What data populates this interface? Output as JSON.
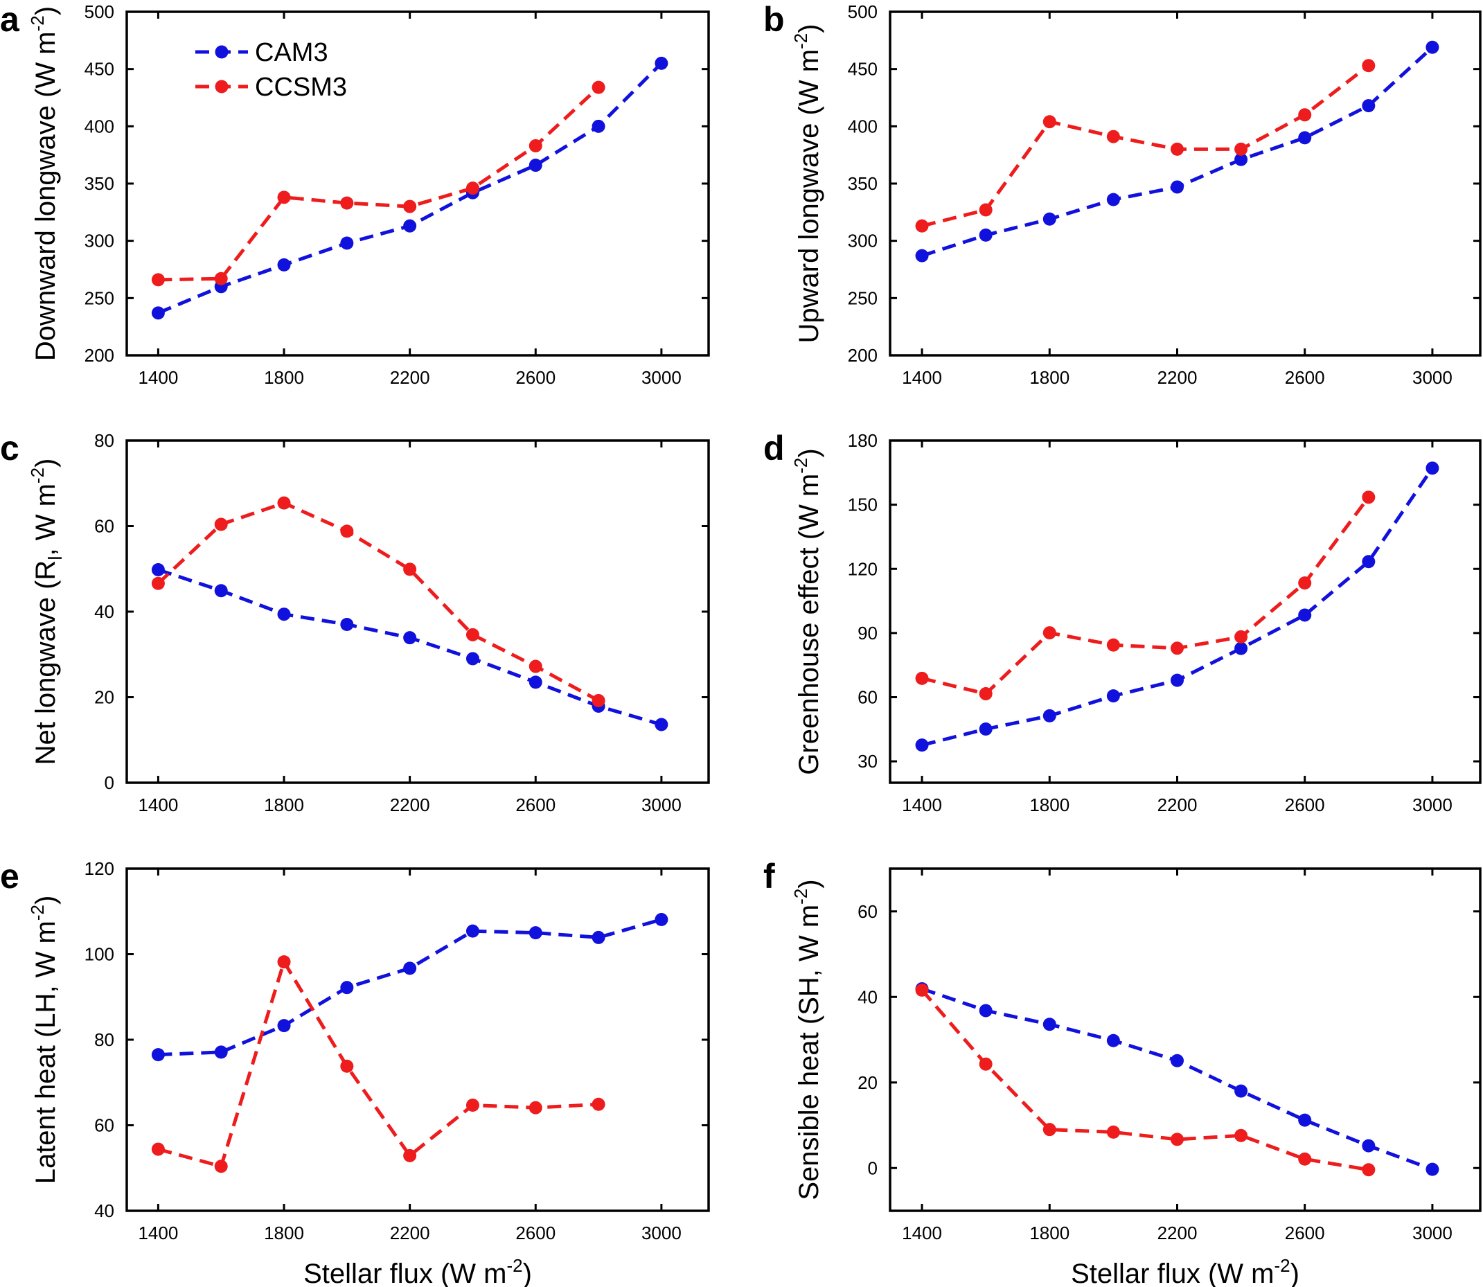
{
  "figure": {
    "colors": {
      "CAM3": "#1111dd",
      "CCSM3": "#ee1c1c"
    },
    "legend": [
      "CAM3",
      "CCSM3"
    ],
    "shared_x_label": "Stellar flux (W m",
    "superscript": "-2"
  },
  "chart_data": [
    {
      "type": "line",
      "panel": "a",
      "title": "",
      "xlabel": "",
      "ylabel": "Downward longwave (W m",
      "ylabel_sup": "-2",
      "ylabel_suffix": ")",
      "xlim": [
        1300,
        3150
      ],
      "ylim": [
        200,
        500
      ],
      "xticks": [
        1400,
        1800,
        2200,
        2600,
        3000
      ],
      "yticks": [
        200,
        250,
        300,
        350,
        400,
        450,
        500
      ],
      "series": [
        {
          "name": "CAM3",
          "x": [
            1400,
            1600,
            1800,
            2000,
            2200,
            2400,
            2600,
            2800,
            3000
          ],
          "y": [
            237,
            260,
            279,
            298,
            313,
            342,
            366,
            400,
            455
          ]
        },
        {
          "name": "CCSM3",
          "x": [
            1400,
            1600,
            1800,
            2000,
            2200,
            2400,
            2600,
            2800
          ],
          "y": [
            266,
            267,
            338,
            333,
            330,
            346,
            383,
            434
          ]
        }
      ]
    },
    {
      "type": "line",
      "panel": "b",
      "title": "",
      "xlabel": "",
      "ylabel": "Upward longwave (W m",
      "ylabel_sup": "-2",
      "ylabel_suffix": ")",
      "xlim": [
        1300,
        3150
      ],
      "ylim": [
        200,
        500
      ],
      "xticks": [
        1400,
        1800,
        2200,
        2600,
        3000
      ],
      "yticks": [
        200,
        250,
        300,
        350,
        400,
        450,
        500
      ],
      "series": [
        {
          "name": "CAM3",
          "x": [
            1400,
            1600,
            1800,
            2000,
            2200,
            2400,
            2600,
            2800,
            3000
          ],
          "y": [
            287,
            305,
            319,
            336,
            347,
            371,
            390,
            418,
            469
          ]
        },
        {
          "name": "CCSM3",
          "x": [
            1400,
            1600,
            1800,
            2000,
            2200,
            2400,
            2600,
            2800
          ],
          "y": [
            313,
            327,
            404,
            391,
            380,
            380,
            410,
            453
          ]
        }
      ]
    },
    {
      "type": "line",
      "panel": "c",
      "title": "",
      "xlabel": "",
      "ylabel": "Net longwave (R",
      "ylabel_sub": "l",
      "ylabel_suffix_mid": ", W m",
      "ylabel_sup": "-2",
      "ylabel_suffix": ")",
      "xlim": [
        1300,
        3150
      ],
      "ylim": [
        0,
        80
      ],
      "xticks": [
        1400,
        1800,
        2200,
        2600,
        3000
      ],
      "yticks": [
        0,
        20,
        40,
        60,
        80
      ],
      "series": [
        {
          "name": "CAM3",
          "x": [
            1400,
            1600,
            1800,
            2000,
            2200,
            2400,
            2600,
            2800,
            3000
          ],
          "y": [
            49.8,
            44.9,
            39.4,
            37.0,
            33.9,
            29.0,
            23.5,
            17.9,
            13.6
          ]
        },
        {
          "name": "CCSM3",
          "x": [
            1400,
            1600,
            1800,
            2000,
            2200,
            2400,
            2600,
            2800
          ],
          "y": [
            46.6,
            60.4,
            65.4,
            58.8,
            49.9,
            34.6,
            27.2,
            19.2
          ]
        }
      ]
    },
    {
      "type": "line",
      "panel": "d",
      "title": "",
      "xlabel": "",
      "ylabel": "Greenhouse effect (W m",
      "ylabel_sup": "-2",
      "ylabel_suffix": ")",
      "xlim": [
        1300,
        3150
      ],
      "ylim": [
        20,
        180
      ],
      "xticks": [
        1400,
        1800,
        2200,
        2600,
        3000
      ],
      "yticks": [
        30,
        60,
        90,
        120,
        150,
        180
      ],
      "series": [
        {
          "name": "CAM3",
          "x": [
            1400,
            1600,
            1800,
            2000,
            2200,
            2400,
            2600,
            2800,
            3000
          ],
          "y": [
            37.6,
            45.1,
            51.3,
            60.6,
            67.9,
            82.8,
            98.4,
            123.4,
            167.1
          ]
        },
        {
          "name": "CCSM3",
          "x": [
            1400,
            1600,
            1800,
            2000,
            2200,
            2400,
            2600,
            2800
          ],
          "y": [
            68.8,
            61.6,
            90.1,
            84.4,
            82.9,
            88.2,
            113.4,
            153.5
          ]
        }
      ]
    },
    {
      "type": "line",
      "panel": "e",
      "title": "",
      "xlabel": "Stellar flux (W m",
      "ylabel": "Latent heat (LH, W m",
      "ylabel_sup": "-2",
      "ylabel_suffix": ")",
      "xlim": [
        1300,
        3150
      ],
      "ylim": [
        40,
        120
      ],
      "xticks": [
        1400,
        1800,
        2200,
        2600,
        3000
      ],
      "yticks": [
        40,
        60,
        80,
        100,
        120
      ],
      "series": [
        {
          "name": "CAM3",
          "x": [
            1400,
            1600,
            1800,
            2000,
            2200,
            2400,
            2600,
            2800,
            3000
          ],
          "y": [
            76.5,
            77.1,
            83.3,
            92.2,
            96.7,
            105.4,
            105.0,
            103.9,
            108.1
          ]
        },
        {
          "name": "CCSM3",
          "x": [
            1400,
            1600,
            1800,
            2000,
            2200,
            2400,
            2600,
            2800
          ],
          "y": [
            54.4,
            50.4,
            98.2,
            73.8,
            52.9,
            64.7,
            64.1,
            64.9
          ]
        }
      ]
    },
    {
      "type": "line",
      "panel": "f",
      "title": "",
      "xlabel": "Stellar flux (W m",
      "ylabel": "Sensible heat (SH, W m",
      "ylabel_sup": "-2",
      "ylabel_suffix": ")",
      "xlim": [
        1300,
        3150
      ],
      "ylim": [
        -10,
        70
      ],
      "xticks": [
        1400,
        1800,
        2200,
        2600,
        3000
      ],
      "yticks": [
        0,
        20,
        40,
        60
      ],
      "series": [
        {
          "name": "CAM3",
          "x": [
            1400,
            1600,
            1800,
            2000,
            2200,
            2400,
            2600,
            2800,
            3000
          ],
          "y": [
            41.9,
            36.8,
            33.6,
            29.8,
            25.1,
            18.0,
            11.2,
            5.2,
            -0.3
          ]
        },
        {
          "name": "CCSM3",
          "x": [
            1400,
            1600,
            1800,
            2000,
            2200,
            2400,
            2600,
            2800
          ],
          "y": [
            41.6,
            24.3,
            9.0,
            8.4,
            6.7,
            7.6,
            2.1,
            -0.4
          ]
        }
      ]
    }
  ]
}
